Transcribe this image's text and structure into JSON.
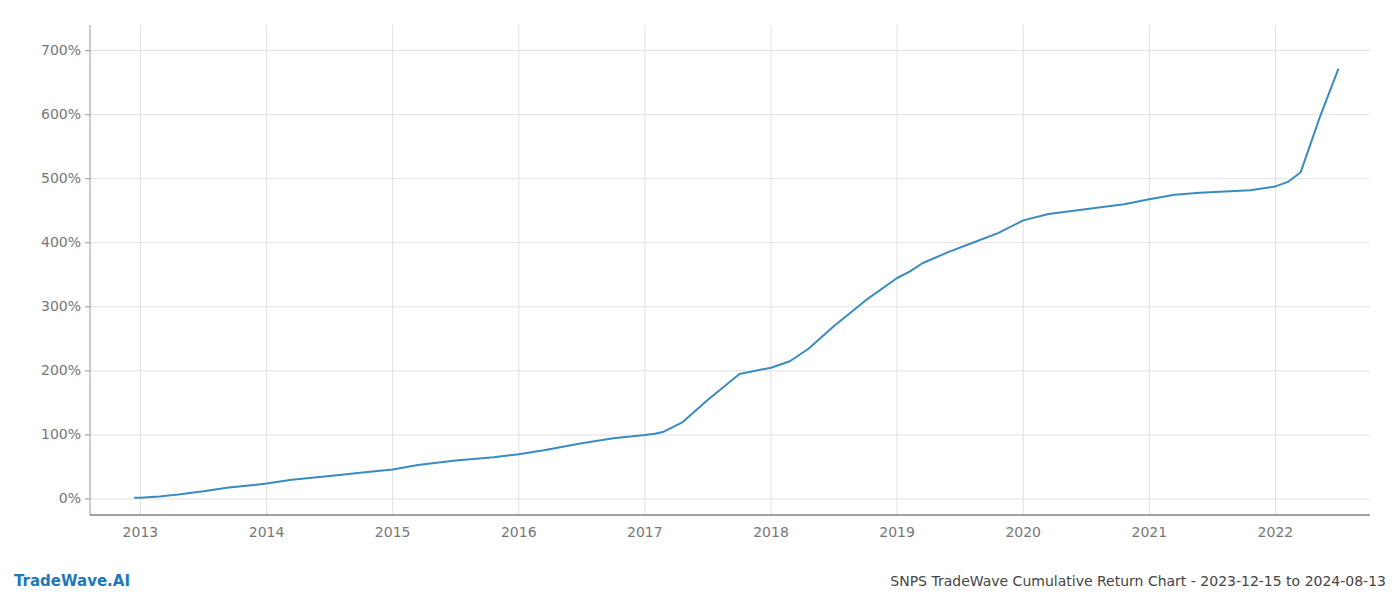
{
  "chart_data": {
    "type": "line",
    "title": "SNPS TradeWave Cumulative Return Chart - 2023-12-15 to 2024-08-13",
    "annotations": [
      "TradeWave.AI"
    ],
    "color": "#3a8bbf",
    "grid": true,
    "x": [
      2012.95,
      2013.0,
      2013.15,
      2013.3,
      2013.5,
      2013.7,
      2013.9,
      2014.0,
      2014.2,
      2014.5,
      2014.8,
      2015.0,
      2015.2,
      2015.5,
      2015.8,
      2016.0,
      2016.2,
      2016.5,
      2016.75,
      2017.0,
      2017.08,
      2017.15,
      2017.3,
      2017.5,
      2017.75,
      2018.0,
      2018.15,
      2018.3,
      2018.5,
      2018.75,
      2019.0,
      2019.1,
      2019.2,
      2019.4,
      2019.6,
      2019.8,
      2020.0,
      2020.2,
      2020.4,
      2020.6,
      2020.8,
      2021.0,
      2021.2,
      2021.4,
      2021.6,
      2021.8,
      2022.0,
      2022.1,
      2022.2,
      2022.35,
      2022.5
    ],
    "values": [
      2,
      2,
      4,
      7,
      12,
      18,
      22,
      24,
      30,
      36,
      42,
      46,
      53,
      60,
      65,
      70,
      76,
      87,
      95,
      100,
      102,
      105,
      120,
      155,
      195,
      205,
      215,
      235,
      270,
      310,
      345,
      355,
      368,
      385,
      400,
      415,
      435,
      445,
      450,
      455,
      460,
      468,
      475,
      478,
      480,
      482,
      488,
      495,
      510,
      595,
      672
    ],
    "xlim": [
      2012.6,
      2022.75
    ],
    "ylim": [
      -25,
      740
    ],
    "xticks": [
      2013,
      2014,
      2015,
      2016,
      2017,
      2018,
      2019,
      2020,
      2021,
      2022
    ],
    "yticks": [
      {
        "value": 0,
        "label": "0%"
      },
      {
        "value": 100,
        "label": "100%"
      },
      {
        "value": 200,
        "label": "200%"
      },
      {
        "value": 300,
        "label": "300%"
      },
      {
        "value": 400,
        "label": "400%"
      },
      {
        "value": 500,
        "label": "500%"
      },
      {
        "value": 600,
        "label": "600%"
      },
      {
        "value": 700,
        "label": "700%"
      }
    ]
  }
}
